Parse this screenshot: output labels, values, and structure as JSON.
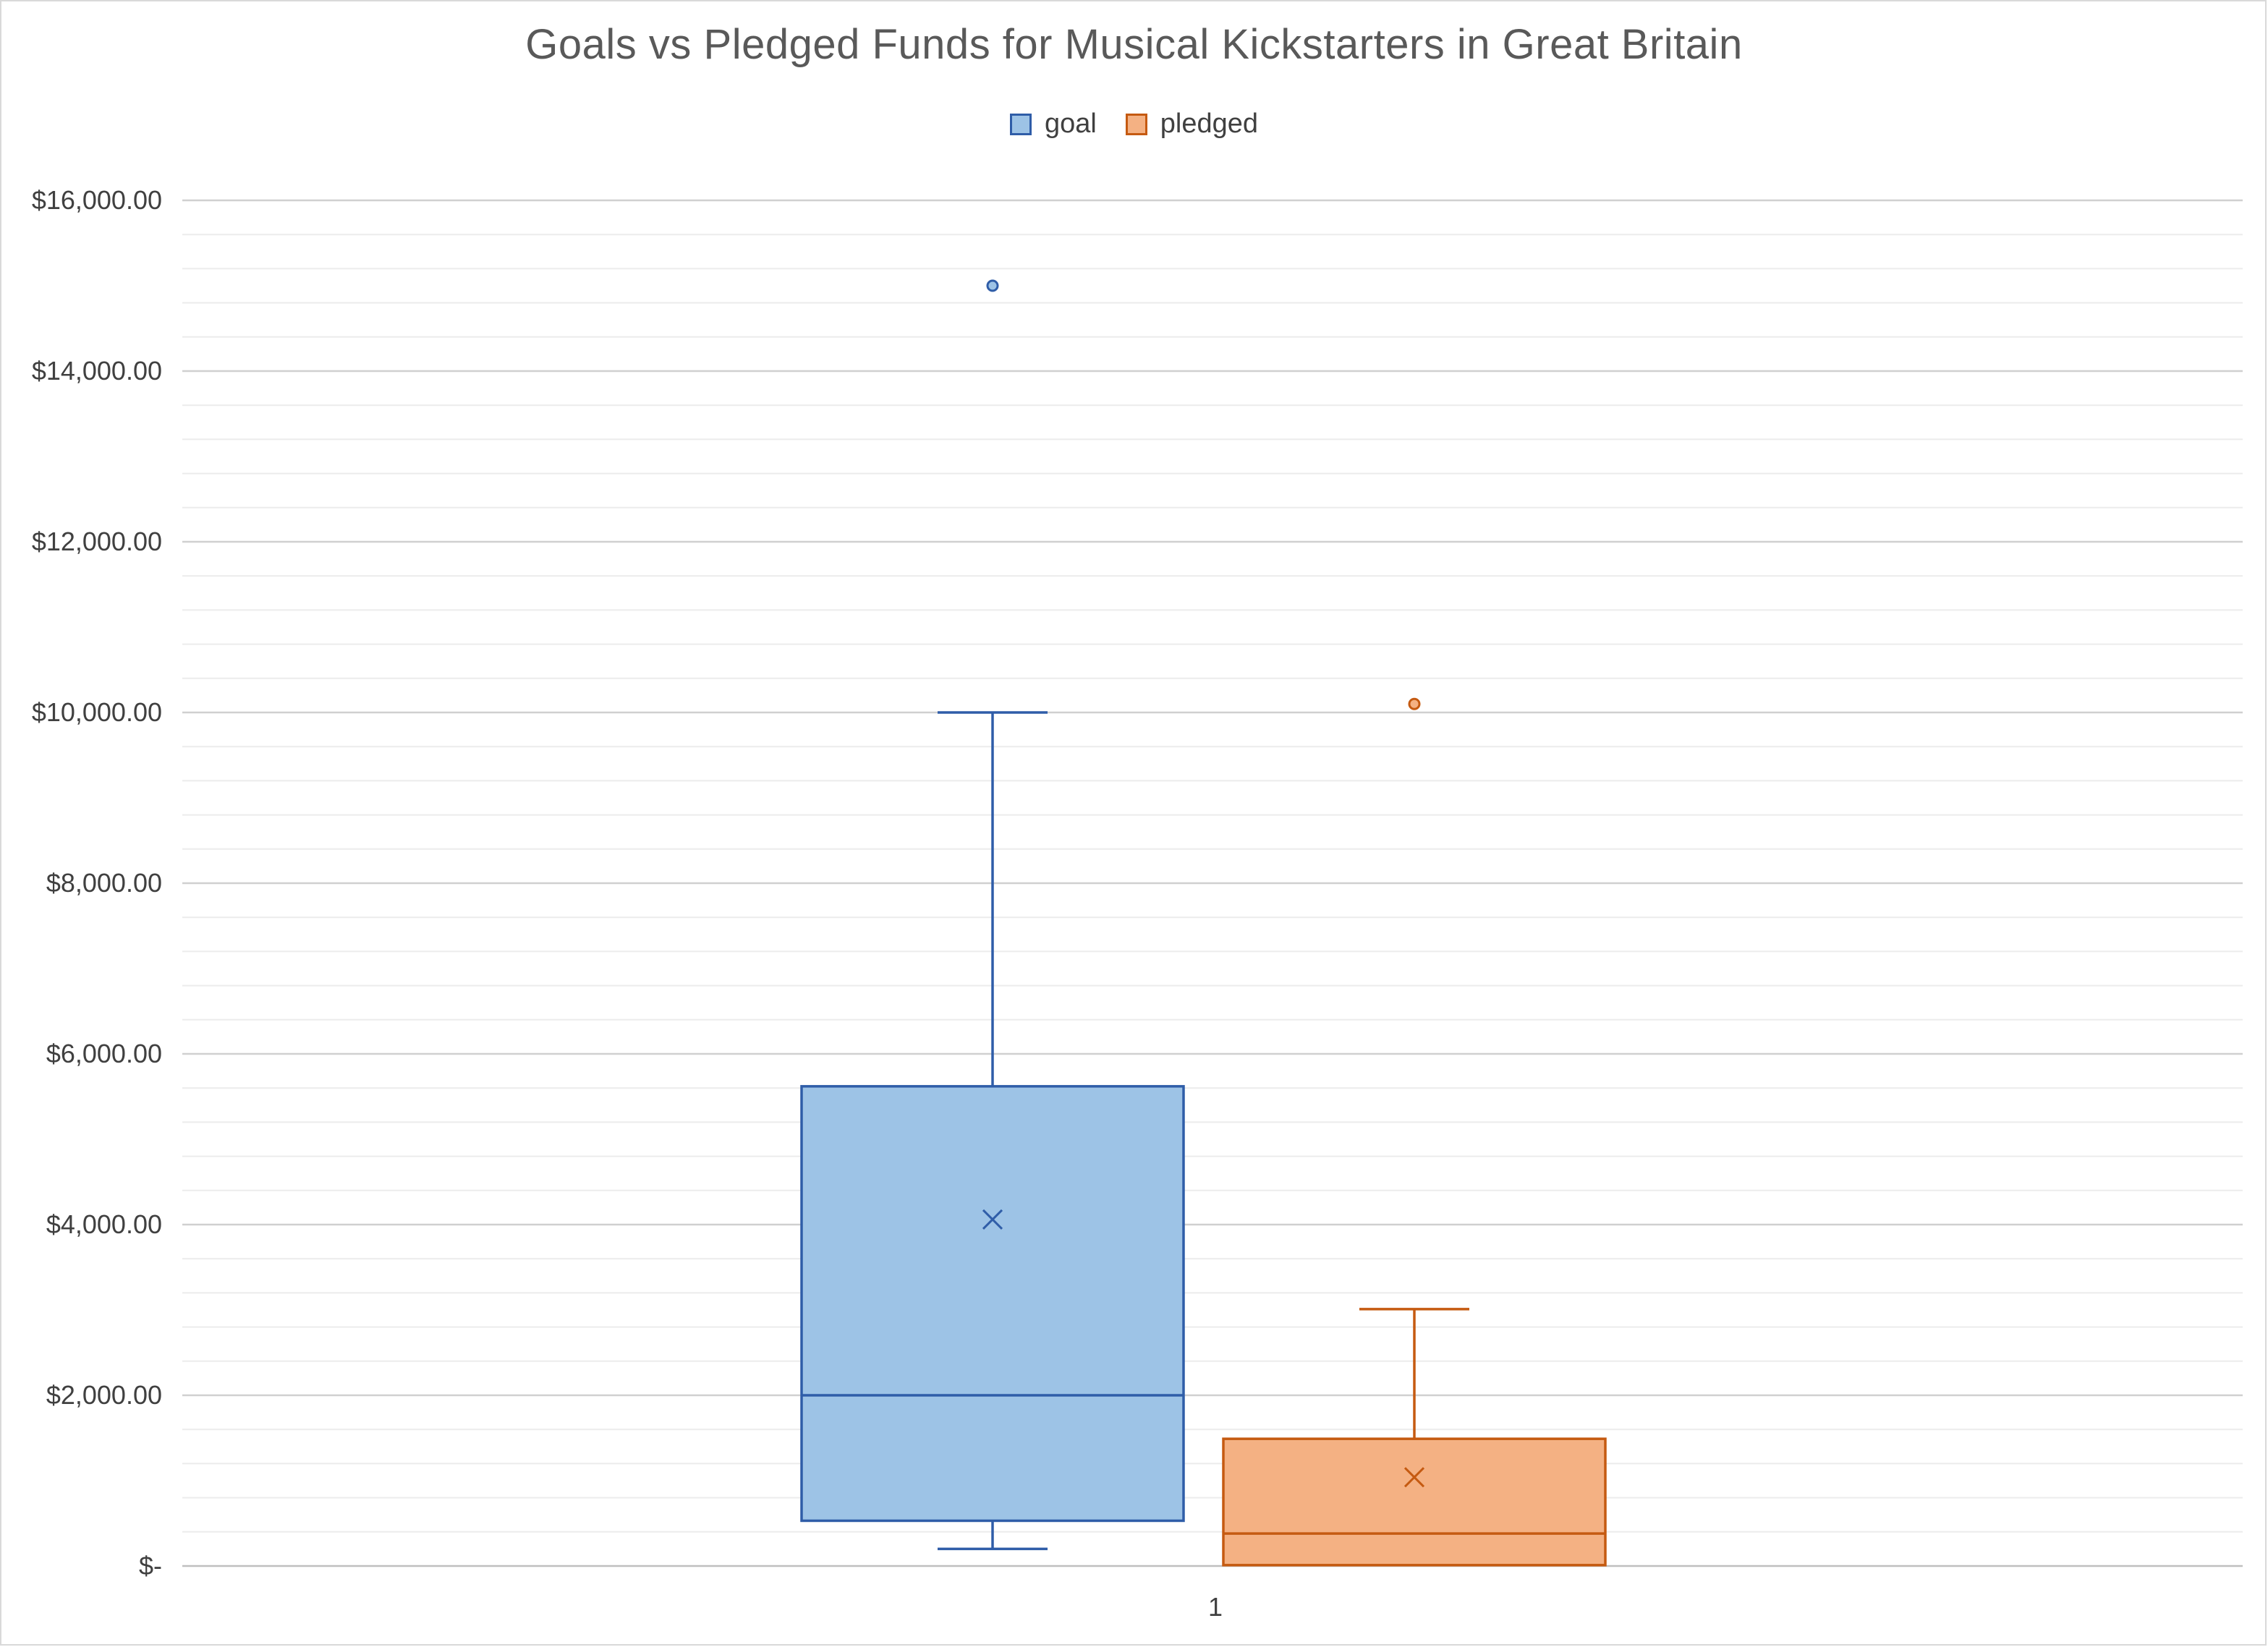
{
  "chart_data": {
    "type": "box",
    "title": "Goals vs Pledged Funds for Musical Kickstarters in Great Britain",
    "categories": [
      "1"
    ],
    "xlabel": "",
    "ylabel": "",
    "ylim": [
      0,
      16000
    ],
    "y_ticks": [
      0,
      2000,
      4000,
      6000,
      8000,
      10000,
      12000,
      14000,
      16000
    ],
    "y_tick_labels": [
      "$-",
      "$2,000.00",
      "$4,000.00",
      "$6,000.00",
      "$8,000.00",
      "$10,000.00",
      "$12,000.00",
      "$14,000.00",
      "$16,000.00"
    ],
    "minor_grid_step": 400,
    "grid": true,
    "legend_position": "top",
    "series": [
      {
        "name": "goal",
        "fill": "#9DC3E6",
        "stroke": "#2F5DA8",
        "whisker_low": 200,
        "q1": 530,
        "median": 2000,
        "q3": 5620,
        "whisker_high": 10000,
        "mean": 4060,
        "outliers": [
          15000
        ]
      },
      {
        "name": "pledged",
        "fill": "#F4B183",
        "stroke": "#C55A11",
        "whisker_low": 10,
        "q1": 10,
        "median": 380,
        "q3": 1490,
        "whisker_high": 3010,
        "mean": 1040,
        "outliers": [
          10100
        ]
      }
    ]
  }
}
